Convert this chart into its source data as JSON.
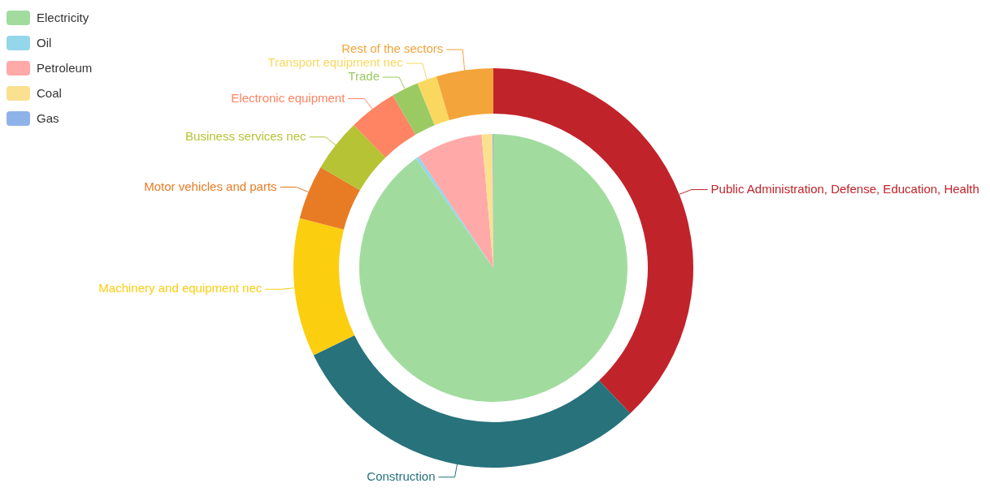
{
  "chart_data": [
    {
      "type": "pie",
      "legend": "top left",
      "categories": [
        "Electricity",
        "Oil",
        "Petroleum",
        "Coal",
        "Gas"
      ],
      "values": [
        90.2,
        0.4,
        8.0,
        1.3,
        0.1
      ],
      "colors": [
        "#a1dc9e",
        "#94d6ea",
        "#ffa9a9",
        "#fbe18f",
        "#8fb3e9"
      ]
    },
    {
      "type": "donut",
      "categories": [
        "Public Administration, Defense, Education, Health",
        "Construction",
        "Machinery and equipment nec",
        "Motor vehicles and parts",
        "Business services nec",
        "Electronic equipment",
        "Trade",
        "Transport equipment nec",
        "Rest of the sectors"
      ],
      "values": [
        38.0,
        29.8,
        11.2,
        4.4,
        4.3,
        3.9,
        2.2,
        1.6,
        4.6
      ],
      "colors": [
        "#c1232b",
        "#27727b",
        "#fcce10",
        "#e87c25",
        "#b5c334",
        "#fe8463",
        "#9bca63",
        "#fad860",
        "#f3a43b"
      ]
    }
  ]
}
